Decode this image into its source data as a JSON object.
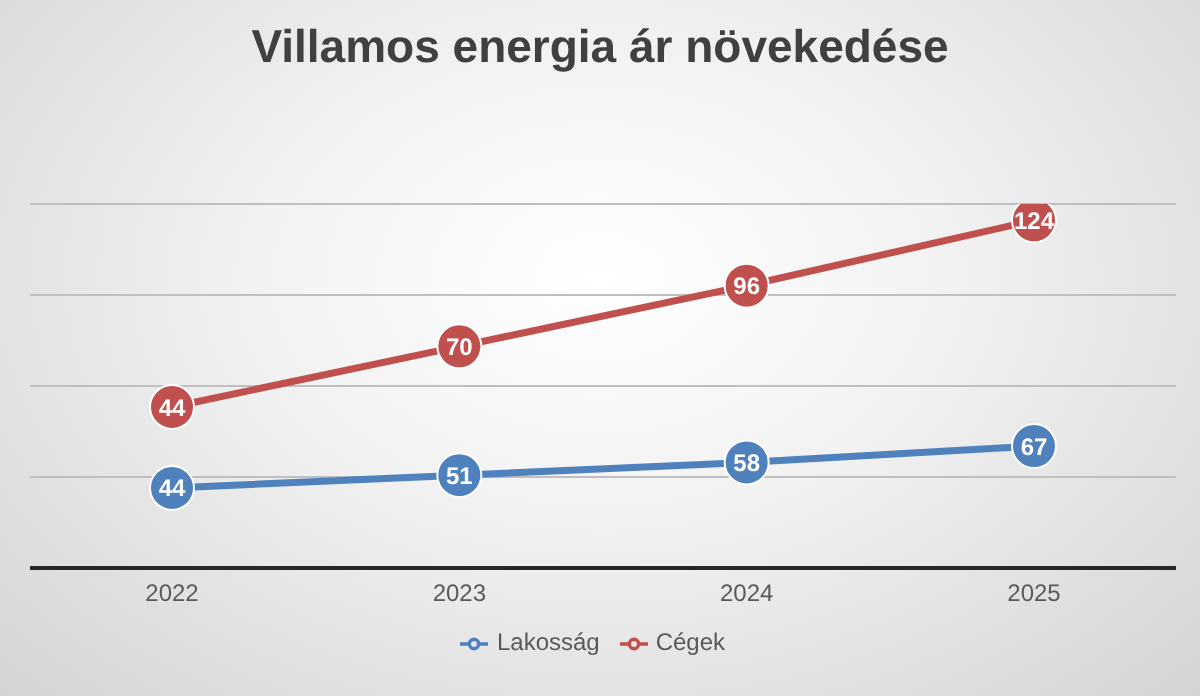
{
  "chart_data": {
    "type": "line",
    "title": "Villamos energia ár növekedése",
    "categories": [
      "2022",
      "2023",
      "2024",
      "2025"
    ],
    "series": [
      {
        "name": "Lakosság",
        "color": "#4f81bd",
        "values": [
          44,
          51,
          58,
          67
        ]
      },
      {
        "name": "Cégek",
        "color": "#c0504d",
        "values": [
          44,
          70,
          96,
          124
        ],
        "axis": "y2"
      }
    ],
    "ylim": [
      0,
      200
    ],
    "yticks": [
      {
        "value": 0,
        "label": null
      },
      {
        "value": 50,
        "label": null
      },
      {
        "value": 100,
        "label": null
      },
      {
        "value": 150,
        "label": null
      },
      {
        "value": 200,
        "label": null
      }
    ],
    "y2lim": [
      -25,
      131
    ],
    "tick_labels": "x",
    "grid": "y",
    "legend": "bottom",
    "marker": "circle",
    "line_style": "solid",
    "data_labels": true
  }
}
